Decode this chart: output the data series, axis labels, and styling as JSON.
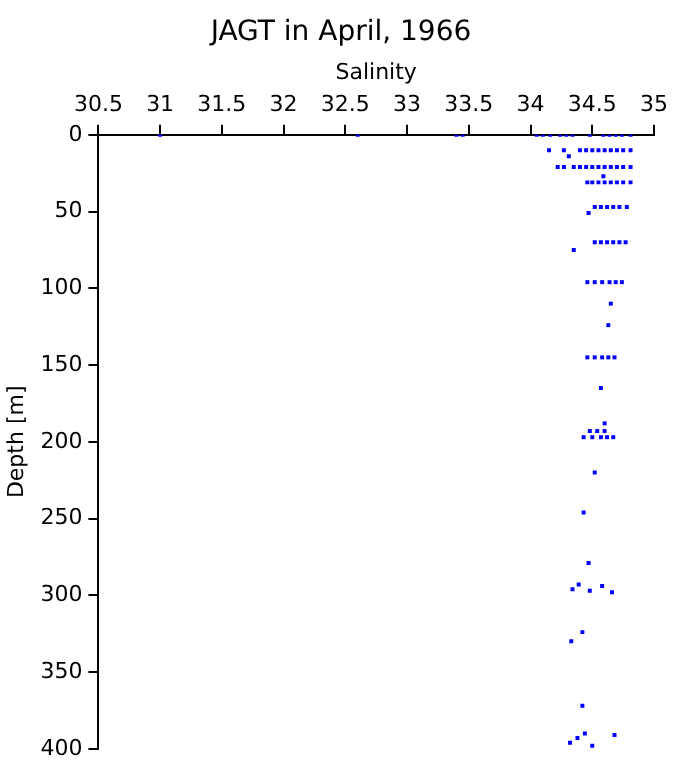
{
  "chart_data": {
    "type": "scatter",
    "title": "JAGT in April, 1966",
    "xlabel": "Salinity",
    "ylabel": "Depth [m]",
    "marker": "square",
    "grid": false,
    "xlim": [
      30.5,
      35
    ],
    "xticks": [
      30.5,
      31,
      31.5,
      32,
      32.5,
      33,
      33.5,
      34,
      34.5,
      35
    ],
    "ylim": [
      400,
      0
    ],
    "yticks": [
      0,
      50,
      100,
      150,
      200,
      250,
      300,
      350,
      400
    ],
    "series": [
      {
        "color": "#0000ff",
        "x": [
          31.0,
          32.6,
          33.4,
          33.45,
          34.05,
          34.1,
          34.16,
          34.24,
          34.29,
          34.34,
          34.48,
          34.59,
          34.64,
          34.69,
          34.74,
          34.81,
          34.15,
          34.27,
          34.4,
          34.45,
          34.5,
          34.55,
          34.6,
          34.65,
          34.7,
          34.75,
          34.81,
          34.31,
          34.22,
          34.27,
          34.35,
          34.4,
          34.45,
          34.5,
          34.55,
          34.6,
          34.65,
          34.7,
          34.75,
          34.81,
          34.46,
          34.5,
          34.55,
          34.6,
          34.65,
          34.7,
          34.75,
          34.81,
          34.59,
          34.52,
          34.57,
          34.62,
          34.67,
          34.72,
          34.78,
          34.47,
          34.52,
          34.57,
          34.62,
          34.67,
          34.72,
          34.77,
          34.35,
          34.46,
          34.52,
          34.58,
          34.64,
          34.69,
          34.74,
          34.65,
          34.63,
          34.46,
          34.52,
          34.58,
          34.63,
          34.68,
          34.57,
          34.48,
          34.54,
          34.6,
          34.6,
          34.43,
          34.5,
          34.57,
          34.62,
          34.67,
          34.52,
          34.43,
          34.47,
          34.39,
          34.34,
          34.58,
          34.66,
          34.48,
          34.42,
          34.33,
          34.42,
          34.32,
          34.38,
          34.44,
          34.5,
          34.68
        ],
        "values": [
          0,
          0,
          0,
          0,
          0,
          0,
          0,
          0,
          0,
          0,
          0,
          0,
          0,
          0,
          0,
          0,
          10,
          10,
          10,
          10,
          10,
          10,
          10,
          10,
          10,
          10,
          10,
          14,
          21,
          21,
          21,
          21,
          21,
          21,
          21,
          21,
          21,
          21,
          21,
          21,
          31,
          31,
          31,
          31,
          31,
          31,
          31,
          31,
          27,
          47,
          47,
          47,
          47,
          47,
          47,
          51,
          70,
          70,
          70,
          70,
          70,
          70,
          75,
          96,
          96,
          96,
          96,
          96,
          96,
          110,
          124,
          145,
          145,
          145,
          145,
          145,
          165,
          193,
          193,
          193,
          188,
          197,
          197,
          197,
          197,
          197,
          220,
          246,
          279,
          293,
          296,
          294,
          298,
          297,
          324,
          330,
          372,
          396,
          393,
          390,
          398,
          391
        ]
      }
    ]
  }
}
